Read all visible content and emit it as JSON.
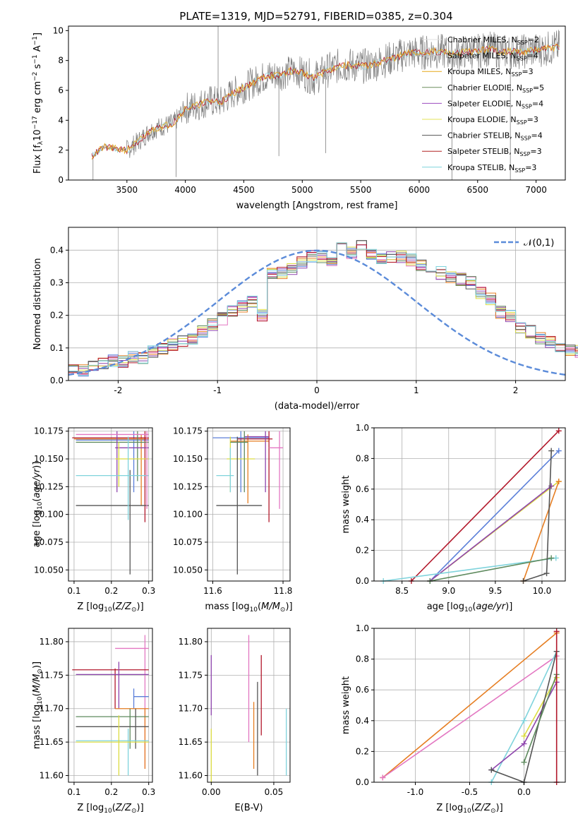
{
  "figure": {
    "title": "PLATE=1319, MJD=52791, FIBERID=0385, z=0.304"
  },
  "model_colors": [
    "#e0e0e0",
    "#c0c0c0",
    "#e6a81a",
    "#6b8f5e",
    "#9d4cbf",
    "#e3e35a",
    "#555555",
    "#b22222",
    "#7fd3dc"
  ],
  "chart_data": [
    {
      "id": "spectrum",
      "type": "line",
      "title": "PLATE=1319, MJD=52791, FIBERID=0385, z=0.304",
      "xlabel": "wavelength [Angstrom, rest frame]",
      "ylabel": "Flux [f_λ 10^-17 erg cm^-2 s^-1 A^-1]",
      "xlim": [
        3000,
        7250
      ],
      "ylim": [
        0,
        10.3
      ],
      "xticks": [
        3500,
        4000,
        4500,
        5000,
        5500,
        6000,
        6500,
        7000
      ],
      "yticks": [
        0,
        2,
        4,
        6,
        8,
        10
      ],
      "continuum": {
        "x": [
          3200,
          3250,
          3300,
          3400,
          3500,
          3600,
          3700,
          3800,
          3900,
          4000,
          4100,
          4200,
          4300,
          4400,
          4500,
          4600,
          4700,
          4800,
          4900,
          5000,
          5100,
          5200,
          5300,
          5400,
          5500,
          5600,
          5700,
          5800,
          5900,
          6000,
          6100,
          6200,
          6300,
          6400,
          6500,
          6600,
          6700,
          6800,
          6900,
          7000,
          7100,
          7200
        ],
        "y": [
          1.6,
          1.9,
          2.2,
          2.1,
          2.0,
          2.6,
          3.3,
          3.6,
          3.8,
          4.8,
          5.0,
          5.3,
          5.2,
          5.8,
          6.2,
          6.6,
          7.0,
          7.0,
          7.3,
          7.2,
          6.8,
          7.3,
          7.6,
          7.7,
          7.6,
          7.7,
          8.0,
          8.2,
          8.5,
          8.5,
          8.6,
          8.6,
          8.4,
          8.6,
          8.6,
          8.8,
          8.6,
          8.6,
          8.6,
          8.7,
          8.8,
          8.9
        ]
      },
      "series": [
        {
          "name": "Chabrier MILES, N_SSP=2"
        },
        {
          "name": "Salpeter MILES, N_SSP=4"
        },
        {
          "name": "Kroupa MILES, N_SSP=3"
        },
        {
          "name": "Chabrier ELODIE, N_SSP=5"
        },
        {
          "name": "Salpeter ELODIE, N_SSP=4"
        },
        {
          "name": "Kroupa ELODIE, N_SSP=3"
        },
        {
          "name": "Chabrier STELIB, N_SSP=4"
        },
        {
          "name": "Salpeter STELIB, N_SSP=3"
        },
        {
          "name": "Kroupa STELIB, N_SSP=3"
        }
      ],
      "legend": "top-right",
      "grid": false
    },
    {
      "id": "residuals",
      "type": "histogram",
      "xlabel": "(data-model)/error",
      "ylabel": "Normed distribution",
      "xlim": [
        -2.5,
        2.5
      ],
      "ylim": [
        0,
        0.47
      ],
      "xticks": [
        -2,
        -1,
        0,
        1,
        2
      ],
      "yticks": [
        0.0,
        0.1,
        0.2,
        0.3,
        0.4
      ],
      "bin_edges_start": -2.5,
      "bin_width": 0.1,
      "bin_values": [
        0.03,
        0.03,
        0.04,
        0.05,
        0.06,
        0.06,
        0.07,
        0.07,
        0.09,
        0.1,
        0.11,
        0.12,
        0.13,
        0.15,
        0.17,
        0.19,
        0.21,
        0.23,
        0.24,
        0.2,
        0.33,
        0.33,
        0.34,
        0.36,
        0.38,
        0.38,
        0.36,
        0.41,
        0.39,
        0.42,
        0.39,
        0.37,
        0.38,
        0.38,
        0.37,
        0.35,
        0.34,
        0.33,
        0.32,
        0.31,
        0.3,
        0.27,
        0.25,
        0.21,
        0.2,
        0.16,
        0.15,
        0.13,
        0.12,
        0.1,
        0.09,
        0.09,
        0.08,
        0.07,
        0.06,
        0.05,
        0.04,
        0.04,
        0.03,
        0.03
      ],
      "reference_curve": {
        "name": "𝒩(0,1)",
        "style": "dashed",
        "color": "#5b8bd9"
      },
      "legend": "top-right",
      "grid": true
    },
    {
      "id": "z-age",
      "type": "errorbar",
      "xlabel": "Z [log10(Z/Z⊙)]",
      "ylabel": "age [log10(age/yr)]",
      "xlim": [
        0.085,
        0.31
      ],
      "ylim": [
        10.04,
        10.178
      ],
      "xticks": [
        0.1,
        0.2,
        0.3
      ],
      "yticks": [
        10.05,
        10.075,
        10.1,
        10.125,
        10.15,
        10.175
      ],
      "points": [
        {
          "x": 0.26,
          "y": 10.167,
          "x0": 0.105,
          "x1": 0.3,
          "y0": 10.12,
          "y1": 10.175,
          "c": 1
        },
        {
          "x": 0.28,
          "y": 10.168,
          "x0": 0.1,
          "x1": 0.3,
          "y0": 10.108,
          "y1": 10.172,
          "c": 2
        },
        {
          "x": 0.29,
          "y": 10.169,
          "x0": 0.095,
          "x1": 0.3,
          "y0": 10.093,
          "y1": 10.175,
          "c": 7
        },
        {
          "x": 0.27,
          "y": 10.165,
          "x0": 0.105,
          "x1": 0.3,
          "y0": 10.13,
          "y1": 10.175,
          "c": 3
        },
        {
          "x": 0.215,
          "y": 10.16,
          "x0": 0.21,
          "x1": 0.3,
          "y0": 10.12,
          "y1": 10.175,
          "c": 4
        },
        {
          "x": 0.22,
          "y": 10.15,
          "x0": 0.21,
          "x1": 0.3,
          "y0": 10.125,
          "y1": 10.165,
          "c": 5
        },
        {
          "x": 0.25,
          "y": 10.108,
          "x0": 0.105,
          "x1": 0.3,
          "y0": 10.046,
          "y1": 10.14,
          "c": 6
        },
        {
          "x": 0.245,
          "y": 10.135,
          "x0": 0.105,
          "x1": 0.3,
          "y0": 10.095,
          "y1": 10.17,
          "c": 8
        },
        {
          "x": 0.295,
          "y": 10.172,
          "x0": 0.105,
          "x1": 0.3,
          "y0": 10.105,
          "y1": 10.175,
          "c": 0
        }
      ],
      "grid": true
    },
    {
      "id": "mass-age",
      "type": "errorbar",
      "xlabel": "mass [log10(M/M⊙)]",
      "ylabel": "",
      "xlim": [
        11.585,
        11.82
      ],
      "ylim": [
        10.04,
        10.178
      ],
      "xticks": [
        11.6,
        11.8
      ],
      "yticks": [
        10.05,
        10.075,
        10.1,
        10.125,
        10.15,
        10.175
      ],
      "points": [
        {
          "x": 11.68,
          "y": 10.169,
          "x0": 11.6,
          "x1": 11.76,
          "y0": 10.12,
          "y1": 10.175,
          "c": 1
        },
        {
          "x": 11.7,
          "y": 10.166,
          "x0": 11.65,
          "x1": 11.76,
          "y0": 10.11,
          "y1": 10.172,
          "c": 2
        },
        {
          "x": 11.76,
          "y": 10.168,
          "x0": 11.67,
          "x1": 11.77,
          "y0": 10.093,
          "y1": 10.175,
          "c": 7
        },
        {
          "x": 11.79,
          "y": 10.16,
          "x0": 11.76,
          "x1": 11.8,
          "y0": 10.105,
          "y1": 10.175,
          "c": 0
        },
        {
          "x": 11.75,
          "y": 10.17,
          "x0": 11.69,
          "x1": 11.76,
          "y0": 10.12,
          "y1": 10.175,
          "c": 4
        },
        {
          "x": 11.65,
          "y": 10.15,
          "x0": 11.64,
          "x1": 11.72,
          "y0": 10.12,
          "y1": 10.17,
          "c": 5
        },
        {
          "x": 11.67,
          "y": 10.108,
          "x0": 11.61,
          "x1": 11.74,
          "y0": 10.046,
          "y1": 10.17,
          "c": 6
        },
        {
          "x": 11.65,
          "y": 10.135,
          "x0": 11.61,
          "x1": 11.66,
          "y0": 10.12,
          "y1": 10.16,
          "c": 8
        },
        {
          "x": 11.69,
          "y": 10.165,
          "x0": 11.65,
          "x1": 11.7,
          "y0": 10.12,
          "y1": 10.175,
          "c": 3
        }
      ],
      "grid": true
    },
    {
      "id": "age-massweight",
      "type": "line",
      "xlabel": "age [log10(age/yr)]",
      "ylabel": "mass weight",
      "xlim": [
        8.2,
        10.25
      ],
      "ylim": [
        0,
        1.0
      ],
      "xticks": [
        8.5,
        9.0,
        9.5,
        10.0
      ],
      "yticks": [
        0.0,
        0.2,
        0.4,
        0.6,
        0.8,
        1.0
      ],
      "series_points": [
        {
          "c": 7,
          "pts": [
            [
              8.6,
              0.0
            ],
            [
              10.18,
              0.98
            ]
          ]
        },
        {
          "c": 1,
          "pts": [
            [
              8.8,
              0.0
            ],
            [
              10.18,
              0.85
            ]
          ]
        },
        {
          "c": 5,
          "pts": [
            [
              8.8,
              0.0
            ],
            [
              10.18,
              0.65
            ]
          ]
        },
        {
          "c": 2,
          "pts": [
            [
              9.8,
              0.0
            ],
            [
              10.18,
              0.65
            ]
          ]
        },
        {
          "c": 4,
          "pts": [
            [
              8.8,
              0.0
            ],
            [
              10.1,
              0.62
            ]
          ]
        },
        {
          "c": 8,
          "pts": [
            [
              8.3,
              0.0
            ],
            [
              10.15,
              0.15
            ]
          ]
        },
        {
          "c": 3,
          "pts": [
            [
              8.8,
              0.0
            ],
            [
              10.1,
              0.15
            ]
          ]
        },
        {
          "c": 6,
          "pts": [
            [
              9.8,
              0.0
            ],
            [
              10.05,
              0.05
            ],
            [
              10.1,
              0.85
            ]
          ]
        }
      ],
      "grid": true
    },
    {
      "id": "z-mass",
      "type": "errorbar",
      "xlabel": "Z [log10(Z/Z⊙)]",
      "ylabel": "mass [log10(M/M⊙)]",
      "xlim": [
        0.085,
        0.31
      ],
      "ylim": [
        11.59,
        11.82
      ],
      "xticks": [
        0.1,
        0.2,
        0.3
      ],
      "yticks": [
        11.6,
        11.65,
        11.7,
        11.75,
        11.8
      ],
      "points": [
        {
          "x": 0.29,
          "y": 11.79,
          "x0": 0.21,
          "x1": 0.3,
          "y0": 11.61,
          "y1": 11.81,
          "c": 0
        },
        {
          "x": 0.21,
          "y": 11.758,
          "x0": 0.095,
          "x1": 0.3,
          "y0": 11.7,
          "y1": 11.76,
          "c": 7
        },
        {
          "x": 0.22,
          "y": 11.751,
          "x0": 0.105,
          "x1": 0.3,
          "y0": 11.7,
          "y1": 11.77,
          "c": 4
        },
        {
          "x": 0.26,
          "y": 11.718,
          "x0": 0.26,
          "x1": 0.3,
          "y0": 11.7,
          "y1": 11.73,
          "c": 1
        },
        {
          "x": 0.29,
          "y": 11.7,
          "x0": 0.21,
          "x1": 0.3,
          "y0": 11.61,
          "y1": 11.7,
          "c": 2
        },
        {
          "x": 0.25,
          "y": 11.688,
          "x0": 0.105,
          "x1": 0.3,
          "y0": 11.64,
          "y1": 11.7,
          "c": 3
        },
        {
          "x": 0.265,
          "y": 11.673,
          "x0": 0.105,
          "x1": 0.3,
          "y0": 11.64,
          "y1": 11.7,
          "c": 6
        },
        {
          "x": 0.245,
          "y": 11.652,
          "x0": 0.105,
          "x1": 0.3,
          "y0": 11.6,
          "y1": 11.67,
          "c": 8
        },
        {
          "x": 0.22,
          "y": 11.65,
          "x0": 0.105,
          "x1": 0.3,
          "y0": 11.6,
          "y1": 11.69,
          "c": 5
        }
      ],
      "grid": true
    },
    {
      "id": "ebv-mass",
      "type": "errorbar",
      "xlabel": "E(B-V)",
      "ylabel": "",
      "xlim": [
        -0.003,
        0.063
      ],
      "ylim": [
        11.59,
        11.82
      ],
      "xticks": [
        0.0,
        0.05
      ],
      "yticks": [
        11.6,
        11.65,
        11.7,
        11.75,
        11.8
      ],
      "points": [
        {
          "x": 0.0,
          "y": 11.73,
          "y0": 11.69,
          "y1": 11.78,
          "c": 4
        },
        {
          "x": 0.0,
          "y": 11.64,
          "y0": 11.59,
          "y1": 11.67,
          "c": 5
        },
        {
          "x": 0.03,
          "y": 11.72,
          "y0": 11.65,
          "y1": 11.81,
          "c": 0
        },
        {
          "x": 0.034,
          "y": 11.67,
          "y0": 11.61,
          "y1": 11.71,
          "c": 2
        },
        {
          "x": 0.037,
          "y": 11.66,
          "y0": 11.6,
          "y1": 11.74,
          "c": 6
        },
        {
          "x": 0.04,
          "y": 11.72,
          "y0": 11.66,
          "y1": 11.78,
          "c": 7
        },
        {
          "x": 0.06,
          "y": 11.65,
          "y0": 11.6,
          "y1": 11.7,
          "c": 8
        }
      ],
      "grid": true
    },
    {
      "id": "z-massweight",
      "type": "line",
      "xlabel": "Z [log10(Z/Z⊙)]",
      "ylabel": "mass weight",
      "xlim": [
        -1.38,
        0.38
      ],
      "ylim": [
        0,
        1.0
      ],
      "xticks": [
        -1.0,
        -0.5,
        0.0
      ],
      "yticks": [
        0.0,
        0.2,
        0.4,
        0.6,
        0.8,
        1.0
      ],
      "series_points": [
        {
          "c": 2,
          "pts": [
            [
              -1.3,
              0.03
            ],
            [
              0.3,
              0.97
            ]
          ]
        },
        {
          "c": 0,
          "pts": [
            [
              -1.3,
              0.03
            ],
            [
              0.3,
              0.82
            ]
          ]
        },
        {
          "c": 8,
          "pts": [
            [
              -0.3,
              0.0
            ],
            [
              0.0,
              0.4
            ],
            [
              0.3,
              0.85
            ]
          ]
        },
        {
          "c": 4,
          "pts": [
            [
              -0.3,
              0.08
            ],
            [
              0.0,
              0.25
            ],
            [
              0.3,
              0.65
            ]
          ]
        },
        {
          "c": 5,
          "pts": [
            [
              0.0,
              0.3
            ],
            [
              0.3,
              0.68
            ]
          ]
        },
        {
          "c": 6,
          "pts": [
            [
              -0.3,
              0.08
            ],
            [
              0.0,
              0.0
            ],
            [
              0.3,
              0.85
            ]
          ]
        },
        {
          "c": 3,
          "pts": [
            [
              0.0,
              0.13
            ],
            [
              0.3,
              0.7
            ]
          ]
        },
        {
          "c": 7,
          "pts": [
            [
              0.3,
              0.0
            ],
            [
              0.3,
              0.98
            ]
          ]
        }
      ],
      "grid": true
    }
  ]
}
